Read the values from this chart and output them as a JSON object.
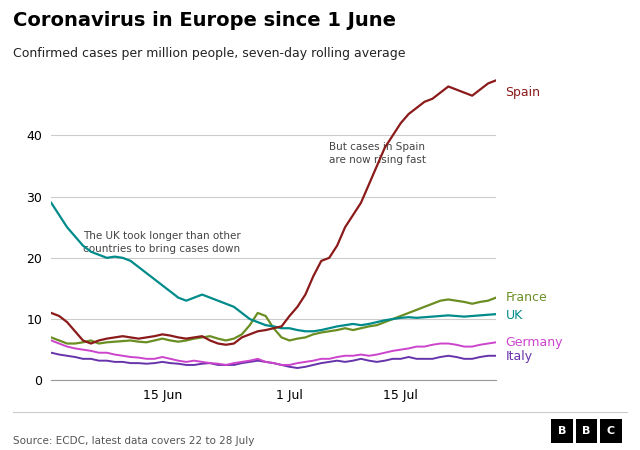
{
  "title": "Coronavirus in Europe since 1 June",
  "subtitle": "Confirmed cases per million people, seven-day rolling average",
  "source": "Source: ECDC, latest data covers 22 to 28 July",
  "bbc_logo": "BBC",
  "ylim": [
    0,
    50
  ],
  "yticks": [
    0,
    10,
    20,
    30,
    40
  ],
  "colors": {
    "Spain": "#8B1A1A",
    "UK": "#008B8B",
    "France": "#6B8E23",
    "Germany": "#CC44CC",
    "Italy": "#6633AA"
  },
  "xtick_labels": [
    "15 Jun",
    "1 Jul",
    "15 Jul"
  ],
  "xtick_positions": [
    14,
    30,
    44
  ],
  "annotation1": "The UK took longer than other\ncountries to bring cases down",
  "annotation2": "But cases in Spain\nare now rising fast",
  "spain": [
    11.0,
    10.5,
    9.5,
    8.0,
    6.5,
    6.0,
    6.5,
    6.8,
    7.0,
    7.2,
    7.0,
    6.8,
    7.0,
    7.2,
    7.5,
    7.3,
    7.0,
    6.8,
    7.0,
    7.2,
    6.5,
    6.0,
    5.8,
    6.0,
    7.0,
    7.5,
    8.0,
    8.2,
    8.5,
    8.8,
    10.5,
    12.0,
    14.0,
    17.0,
    19.5,
    20.0,
    22.0,
    25.0,
    27.0,
    29.0,
    32.0,
    35.0,
    38.0,
    40.0,
    42.0,
    43.5,
    44.5,
    45.5,
    46.0,
    47.0,
    48.0,
    47.5,
    47.0,
    46.5,
    47.5,
    48.5,
    49.0
  ],
  "uk": [
    29.0,
    27.0,
    25.0,
    23.5,
    22.0,
    21.0,
    20.5,
    20.0,
    20.2,
    20.0,
    19.5,
    18.5,
    17.5,
    16.5,
    15.5,
    14.5,
    13.5,
    13.0,
    13.5,
    14.0,
    13.5,
    13.0,
    12.5,
    12.0,
    11.0,
    10.0,
    9.5,
    9.0,
    8.8,
    8.5,
    8.5,
    8.2,
    8.0,
    8.0,
    8.2,
    8.5,
    8.8,
    9.0,
    9.2,
    9.0,
    9.2,
    9.5,
    9.8,
    10.0,
    10.2,
    10.3,
    10.2,
    10.3,
    10.4,
    10.5,
    10.6,
    10.5,
    10.4,
    10.5,
    10.6,
    10.7,
    10.8
  ],
  "france": [
    7.0,
    6.5,
    6.0,
    6.0,
    6.2,
    6.5,
    6.0,
    6.2,
    6.3,
    6.4,
    6.5,
    6.3,
    6.2,
    6.5,
    6.8,
    6.5,
    6.3,
    6.5,
    6.8,
    7.0,
    7.2,
    6.8,
    6.5,
    6.8,
    7.5,
    9.0,
    11.0,
    10.5,
    8.5,
    7.0,
    6.5,
    6.8,
    7.0,
    7.5,
    7.8,
    8.0,
    8.2,
    8.5,
    8.2,
    8.5,
    8.8,
    9.0,
    9.5,
    10.0,
    10.5,
    11.0,
    11.5,
    12.0,
    12.5,
    13.0,
    13.2,
    13.0,
    12.8,
    12.5,
    12.8,
    13.0,
    13.5
  ],
  "germany": [
    6.5,
    6.0,
    5.5,
    5.2,
    5.0,
    4.8,
    4.5,
    4.5,
    4.2,
    4.0,
    3.8,
    3.7,
    3.5,
    3.5,
    3.8,
    3.5,
    3.2,
    3.0,
    3.2,
    3.0,
    2.8,
    2.7,
    2.5,
    2.8,
    3.0,
    3.2,
    3.5,
    3.0,
    2.8,
    2.5,
    2.5,
    2.8,
    3.0,
    3.2,
    3.5,
    3.5,
    3.8,
    4.0,
    4.0,
    4.2,
    4.0,
    4.2,
    4.5,
    4.8,
    5.0,
    5.2,
    5.5,
    5.5,
    5.8,
    6.0,
    6.0,
    5.8,
    5.5,
    5.5,
    5.8,
    6.0,
    6.2
  ],
  "italy": [
    4.5,
    4.2,
    4.0,
    3.8,
    3.5,
    3.5,
    3.2,
    3.2,
    3.0,
    3.0,
    2.8,
    2.8,
    2.7,
    2.8,
    3.0,
    2.8,
    2.7,
    2.5,
    2.5,
    2.7,
    2.8,
    2.5,
    2.5,
    2.5,
    2.8,
    3.0,
    3.2,
    3.0,
    2.8,
    2.5,
    2.2,
    2.0,
    2.2,
    2.5,
    2.8,
    3.0,
    3.2,
    3.0,
    3.2,
    3.5,
    3.2,
    3.0,
    3.2,
    3.5,
    3.5,
    3.8,
    3.5,
    3.5,
    3.5,
    3.8,
    4.0,
    3.8,
    3.5,
    3.5,
    3.8,
    4.0,
    4.0
  ]
}
